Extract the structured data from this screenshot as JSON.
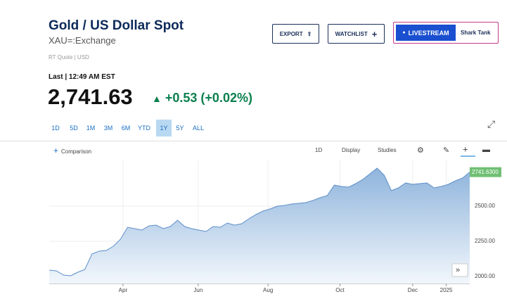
{
  "header": {
    "title": "Gold / US Dollar Spot",
    "exchange": "XAU=:Exchange",
    "quote_info": "RT Quote | USD"
  },
  "buttons": {
    "export": "EXPORT",
    "watchlist": "WATCHLIST",
    "livestream": "LIVESTREAM",
    "show": "Shark Tank"
  },
  "quote": {
    "last_label": "Last | 12:49 AM EST",
    "price": "2,741.63",
    "change": "+0.53 (+0.02%)"
  },
  "ranges": [
    "1D",
    "5D",
    "1M",
    "3M",
    "6M",
    "YTD",
    "1Y",
    "5Y",
    "ALL"
  ],
  "active_range": 6,
  "toolbar": {
    "comparison": "Comparison",
    "interval": "1D",
    "display": "Display",
    "studies": "Studies"
  },
  "chart_data": {
    "type": "area",
    "color": "#5b8ec7",
    "values": [
      2045,
      2040,
      2010,
      2005,
      2030,
      2050,
      2160,
      2180,
      2185,
      2215,
      2265,
      2350,
      2340,
      2330,
      2360,
      2365,
      2340,
      2355,
      2400,
      2355,
      2340,
      2330,
      2320,
      2355,
      2350,
      2380,
      2365,
      2375,
      2410,
      2440,
      2465,
      2480,
      2500,
      2505,
      2515,
      2520,
      2525,
      2540,
      2560,
      2575,
      2650,
      2640,
      2635,
      2660,
      2690,
      2730,
      2770,
      2720,
      2610,
      2630,
      2665,
      2655,
      2660,
      2665,
      2630,
      2640,
      2655,
      2680,
      2700,
      2741.63
    ],
    "xlim": [
      0,
      59
    ],
    "xticks": [
      {
        "value": 10.35,
        "label": "Apr"
      },
      {
        "value": 20.9,
        "label": "Jun"
      },
      {
        "value": 30.7,
        "label": "Aug"
      },
      {
        "value": 40.8,
        "label": "Oct"
      },
      {
        "value": 51,
        "label": "Dec"
      },
      {
        "value": 55.7,
        "label": "2025"
      }
    ],
    "ylim": [
      1950,
      2825
    ],
    "yticks": [
      {
        "value": 2000,
        "label": "2000.00"
      },
      {
        "value": 2250,
        "label": "2250.00"
      },
      {
        "value": 2500,
        "label": "2500.00"
      }
    ],
    "last_label": {
      "value": 2741.63,
      "label": "2741.6300"
    },
    "grid": true
  }
}
